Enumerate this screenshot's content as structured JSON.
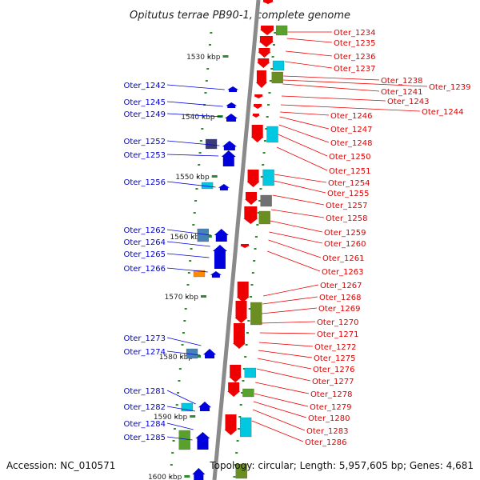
{
  "title": "Opitutus terrae PB90-1, complete genome",
  "footer": {
    "accession": "Accession: NC_010571",
    "topology": "Topology: circular; Length: 5,957,605 bp; Genes: 4,681"
  },
  "ticks": [
    "1530 kbp",
    "1540 kbp",
    "1550 kbp",
    "1560 kbp",
    "1570 kbp",
    "1580 kbp",
    "1590 kbp",
    "1600 kbp"
  ],
  "left_labels": [
    "Oter_1242",
    "Oter_1245",
    "Oter_1249",
    "Oter_1252",
    "Oter_1253",
    "Oter_1256",
    "Oter_1262",
    "Oter_1264",
    "Oter_1265",
    "Oter_1266",
    "Oter_1273",
    "Oter_1274",
    "Oter_1281",
    "Oter_1282",
    "Oter_1284",
    "Oter_1285"
  ],
  "right_labels": [
    "Oter_1234",
    "Oter_1235",
    "Oter_1236",
    "Oter_1237",
    "Oter_1238",
    "Oter_1239",
    "Oter_1241",
    "Oter_1243",
    "Oter_1244",
    "Oter_1246",
    "Oter_1247",
    "Oter_1248",
    "Oter_1250",
    "Oter_1251",
    "Oter_1254",
    "Oter_1255",
    "Oter_1257",
    "Oter_1258",
    "Oter_1259",
    "Oter_1260",
    "Oter_1261",
    "Oter_1263",
    "Oter_1267",
    "Oter_1268",
    "Oter_1269",
    "Oter_1270",
    "Oter_1271",
    "Oter_1272",
    "Oter_1275",
    "Oter_1276",
    "Oter_1277",
    "Oter_1278",
    "Oter_1279",
    "Oter_1280",
    "Oter_1283",
    "Oter_1286"
  ],
  "colors": {
    "forward": "#0000dd",
    "reverse": "#ee0000",
    "backbone": "#8a8a8a",
    "tick": "#2e8b2e",
    "cog_green": "#5aa02c",
    "cog_olive": "#6b8e23",
    "cog_cyan": "#00c8e0",
    "cog_navy": "#3a3a7a",
    "cog_steel": "#4682b4",
    "cog_orange": "#ff8c00",
    "cog_grey": "#707070"
  }
}
